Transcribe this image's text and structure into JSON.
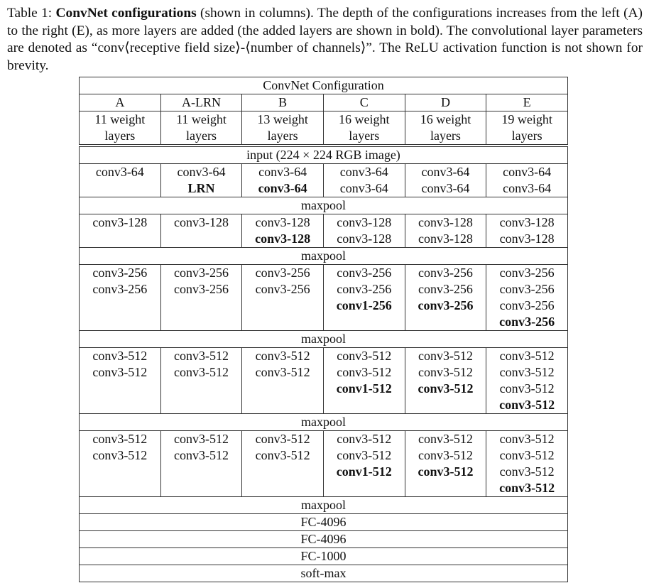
{
  "caption": {
    "label": "Table 1:",
    "bold": "ConvNet configurations",
    "text": "(shown in columns). The depth of the configurations increases from the left (A) to the right (E), as more layers are added (the added layers are shown in bold). The convolutional layer parameters are denoted as “conv⟨receptive field size⟩-⟨number of channels⟩”. The ReLU activation function is not shown for brevity."
  },
  "table": {
    "header": "ConvNet Configuration",
    "columns": [
      {
        "name": "A",
        "depth": "11 weight layers"
      },
      {
        "name": "A-LRN",
        "depth": "11 weight layers"
      },
      {
        "name": "B",
        "depth": "13 weight layers"
      },
      {
        "name": "C",
        "depth": "16 weight layers"
      },
      {
        "name": "D",
        "depth": "16 weight layers"
      },
      {
        "name": "E",
        "depth": "19 weight layers"
      }
    ],
    "sections": [
      {
        "type": "span",
        "text": "input (224 × 224 RGB image)"
      },
      {
        "type": "stack",
        "cells": [
          [
            {
              "name": "conv3-64",
              "added": false
            }
          ],
          [
            {
              "name": "conv3-64",
              "added": false
            },
            {
              "name": "LRN",
              "added": true
            }
          ],
          [
            {
              "name": "conv3-64",
              "added": false
            },
            {
              "name": "conv3-64",
              "added": true
            }
          ],
          [
            {
              "name": "conv3-64",
              "added": false
            },
            {
              "name": "conv3-64",
              "added": false
            }
          ],
          [
            {
              "name": "conv3-64",
              "added": false
            },
            {
              "name": "conv3-64",
              "added": false
            }
          ],
          [
            {
              "name": "conv3-64",
              "added": false
            },
            {
              "name": "conv3-64",
              "added": false
            }
          ]
        ]
      },
      {
        "type": "span",
        "text": "maxpool"
      },
      {
        "type": "stack",
        "cells": [
          [
            {
              "name": "conv3-128",
              "added": false
            }
          ],
          [
            {
              "name": "conv3-128",
              "added": false
            }
          ],
          [
            {
              "name": "conv3-128",
              "added": false
            },
            {
              "name": "conv3-128",
              "added": true
            }
          ],
          [
            {
              "name": "conv3-128",
              "added": false
            },
            {
              "name": "conv3-128",
              "added": false
            }
          ],
          [
            {
              "name": "conv3-128",
              "added": false
            },
            {
              "name": "conv3-128",
              "added": false
            }
          ],
          [
            {
              "name": "conv3-128",
              "added": false
            },
            {
              "name": "conv3-128",
              "added": false
            }
          ]
        ]
      },
      {
        "type": "span",
        "text": "maxpool"
      },
      {
        "type": "stack",
        "cells": [
          [
            {
              "name": "conv3-256",
              "added": false
            },
            {
              "name": "conv3-256",
              "added": false
            }
          ],
          [
            {
              "name": "conv3-256",
              "added": false
            },
            {
              "name": "conv3-256",
              "added": false
            }
          ],
          [
            {
              "name": "conv3-256",
              "added": false
            },
            {
              "name": "conv3-256",
              "added": false
            }
          ],
          [
            {
              "name": "conv3-256",
              "added": false
            },
            {
              "name": "conv3-256",
              "added": false
            },
            {
              "name": "conv1-256",
              "added": true
            }
          ],
          [
            {
              "name": "conv3-256",
              "added": false
            },
            {
              "name": "conv3-256",
              "added": false
            },
            {
              "name": "conv3-256",
              "added": true
            }
          ],
          [
            {
              "name": "conv3-256",
              "added": false
            },
            {
              "name": "conv3-256",
              "added": false
            },
            {
              "name": "conv3-256",
              "added": false
            },
            {
              "name": "conv3-256",
              "added": true
            }
          ]
        ]
      },
      {
        "type": "span",
        "text": "maxpool"
      },
      {
        "type": "stack",
        "cells": [
          [
            {
              "name": "conv3-512",
              "added": false
            },
            {
              "name": "conv3-512",
              "added": false
            }
          ],
          [
            {
              "name": "conv3-512",
              "added": false
            },
            {
              "name": "conv3-512",
              "added": false
            }
          ],
          [
            {
              "name": "conv3-512",
              "added": false
            },
            {
              "name": "conv3-512",
              "added": false
            }
          ],
          [
            {
              "name": "conv3-512",
              "added": false
            },
            {
              "name": "conv3-512",
              "added": false
            },
            {
              "name": "conv1-512",
              "added": true
            }
          ],
          [
            {
              "name": "conv3-512",
              "added": false
            },
            {
              "name": "conv3-512",
              "added": false
            },
            {
              "name": "conv3-512",
              "added": true
            }
          ],
          [
            {
              "name": "conv3-512",
              "added": false
            },
            {
              "name": "conv3-512",
              "added": false
            },
            {
              "name": "conv3-512",
              "added": false
            },
            {
              "name": "conv3-512",
              "added": true
            }
          ]
        ]
      },
      {
        "type": "span",
        "text": "maxpool"
      },
      {
        "type": "stack",
        "cells": [
          [
            {
              "name": "conv3-512",
              "added": false
            },
            {
              "name": "conv3-512",
              "added": false
            }
          ],
          [
            {
              "name": "conv3-512",
              "added": false
            },
            {
              "name": "conv3-512",
              "added": false
            }
          ],
          [
            {
              "name": "conv3-512",
              "added": false
            },
            {
              "name": "conv3-512",
              "added": false
            }
          ],
          [
            {
              "name": "conv3-512",
              "added": false
            },
            {
              "name": "conv3-512",
              "added": false
            },
            {
              "name": "conv1-512",
              "added": true
            }
          ],
          [
            {
              "name": "conv3-512",
              "added": false
            },
            {
              "name": "conv3-512",
              "added": false
            },
            {
              "name": "conv3-512",
              "added": true
            }
          ],
          [
            {
              "name": "conv3-512",
              "added": false
            },
            {
              "name": "conv3-512",
              "added": false
            },
            {
              "name": "conv3-512",
              "added": false
            },
            {
              "name": "conv3-512",
              "added": true
            }
          ]
        ]
      },
      {
        "type": "span",
        "text": "maxpool"
      },
      {
        "type": "span",
        "text": "FC-4096"
      },
      {
        "type": "span",
        "text": "FC-4096"
      },
      {
        "type": "span",
        "text": "FC-1000"
      },
      {
        "type": "span",
        "text": "soft-max"
      }
    ]
  }
}
